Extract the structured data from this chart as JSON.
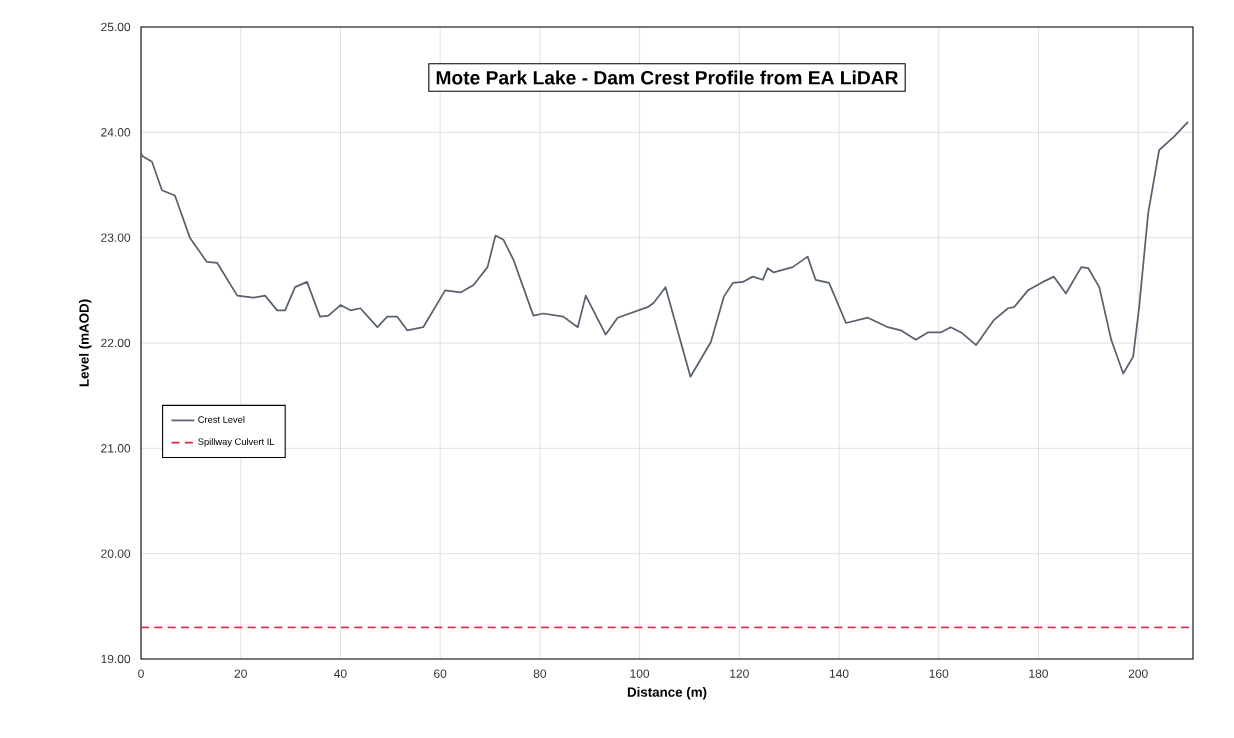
{
  "chart_data": {
    "type": "line",
    "title": "Mote Park Lake - Dam Crest Profile from EA LiDAR",
    "xlabel": "Distance (m)",
    "ylabel": "Level (mAOD)",
    "xlim": [
      0,
      211
    ],
    "ylim": [
      19,
      25
    ],
    "xticks": [
      0,
      20,
      40,
      60,
      80,
      100,
      120,
      140,
      160,
      180,
      200
    ],
    "yticks": [
      {
        "value": 19,
        "label": "19.00"
      },
      {
        "value": 20,
        "label": "20.00"
      },
      {
        "value": 21,
        "label": "21.00"
      },
      {
        "value": 22,
        "label": "22.00"
      },
      {
        "value": 23,
        "label": "23.00"
      },
      {
        "value": 24,
        "label": "24.00"
      },
      {
        "value": 25,
        "label": "25.00"
      }
    ],
    "grid": true,
    "legend": "left",
    "marker": "none",
    "series": [
      {
        "name": "Crest Level",
        "color": "#59606e",
        "line_style": "solid",
        "x": [
          0,
          0.4,
          2.2,
          4.2,
          6.8,
          9.8,
          13.2,
          15.3,
          19.3,
          22.5,
          24.9,
          27.3,
          28.9,
          30.9,
          33.3,
          35.9,
          37.6,
          40.0,
          42.0,
          44.0,
          47.4,
          49.4,
          51.4,
          53.4,
          56.6,
          61.0,
          64.1,
          66.7,
          69.5,
          71.1,
          72.7,
          74.7,
          78.7,
          80.7,
          84.7,
          87.6,
          89.2,
          93.2,
          95.6,
          101.6,
          102.8,
          105.2,
          110.2,
          114.3,
          116.9,
          118.7,
          120.7,
          122.7,
          124.7,
          125.7,
          126.9,
          130.7,
          133.7,
          135.3,
          138.0,
          141.4,
          145.8,
          149.8,
          152.4,
          155.4,
          157.8,
          160.4,
          162.4,
          164.5,
          167.5,
          171.1,
          173.9,
          175.1,
          177.9,
          180.9,
          183.1,
          185.5,
          188.6,
          190.0,
          192.2,
          194.6,
          197.0,
          199.0,
          200.2,
          202.0,
          204.2,
          207.2,
          210.0
        ],
        "values": [
          23.8,
          23.77,
          23.72,
          23.45,
          23.4,
          23.0,
          22.77,
          22.76,
          22.45,
          22.43,
          22.45,
          22.31,
          22.31,
          22.53,
          22.58,
          22.25,
          22.26,
          22.36,
          22.31,
          22.33,
          22.15,
          22.25,
          22.25,
          22.12,
          22.15,
          22.5,
          22.48,
          22.55,
          22.72,
          23.02,
          22.98,
          22.79,
          22.26,
          22.28,
          22.25,
          22.15,
          22.45,
          22.08,
          22.24,
          22.34,
          22.38,
          22.53,
          21.68,
          22.01,
          22.44,
          22.57,
          22.58,
          22.63,
          22.6,
          22.71,
          22.67,
          22.72,
          22.82,
          22.6,
          22.57,
          22.19,
          22.24,
          22.15,
          22.12,
          22.03,
          22.1,
          22.1,
          22.15,
          22.1,
          21.98,
          22.22,
          22.33,
          22.34,
          22.5,
          22.58,
          22.63,
          22.47,
          22.72,
          22.71,
          22.53,
          22.03,
          21.71,
          21.87,
          22.34,
          23.23,
          23.83,
          23.96,
          24.1
        ]
      },
      {
        "name": "Spillway Culvert IL",
        "color": "#e8204a",
        "line_style": "dashed",
        "x": [
          0,
          211
        ],
        "values": [
          19.3,
          19.3
        ]
      }
    ]
  }
}
